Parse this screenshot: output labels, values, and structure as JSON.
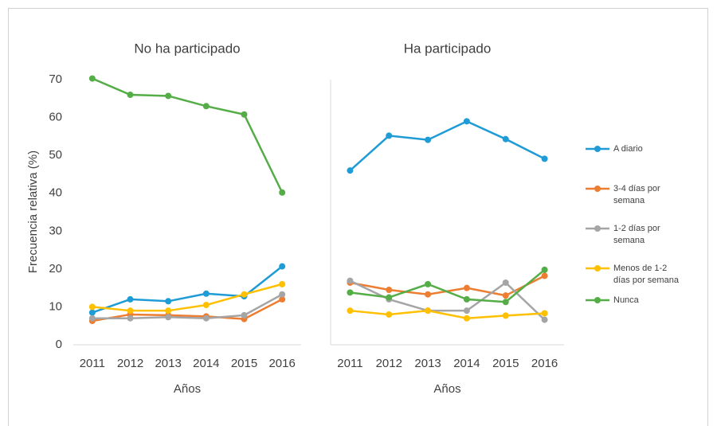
{
  "chart_data": {
    "type": "line",
    "ylabel": "Frecuencia relativa (%)",
    "ylim": [
      0,
      70
    ],
    "yticks": [
      0,
      10,
      20,
      30,
      40,
      50,
      60,
      70
    ],
    "categories": [
      "2011",
      "2012",
      "2013",
      "2014",
      "2015",
      "2016"
    ],
    "legend_position": "right",
    "series": [
      {
        "name": "A diario",
        "color": "#1f9bd6"
      },
      {
        "name": "3-4 días por semana",
        "color": "#ed7d31"
      },
      {
        "name": "1-2 días por semana",
        "color": "#a5a5a5"
      },
      {
        "name": "Menos de 1-2 días por semana",
        "color": "#ffc000"
      },
      {
        "name": "Nunca",
        "color": "#55ad47"
      }
    ],
    "panels": [
      {
        "title": "No ha participado",
        "xlabel": "Años",
        "values": [
          [
            8.5,
            12,
            11.5,
            13.5,
            12.8,
            20.7
          ],
          [
            6.3,
            8,
            7.8,
            7.5,
            6.8,
            12
          ],
          [
            7,
            7,
            7.3,
            7,
            7.8,
            13.3
          ],
          [
            10,
            9,
            9,
            10.5,
            13.3,
            16
          ],
          [
            70.3,
            66,
            65.7,
            63,
            60.8,
            40.2
          ]
        ]
      },
      {
        "title": "Ha participado",
        "xlabel": "Años",
        "values": [
          [
            46,
            55.2,
            54.1,
            59,
            54.3,
            49.1
          ],
          [
            16.4,
            14.5,
            13.3,
            15,
            13,
            18.2
          ],
          [
            16.9,
            12,
            9,
            9,
            16.4,
            6.6
          ],
          [
            9,
            8,
            9,
            7,
            7.7,
            8.3
          ],
          [
            13.8,
            12.5,
            16,
            12,
            11.3,
            19.8
          ]
        ]
      }
    ]
  }
}
